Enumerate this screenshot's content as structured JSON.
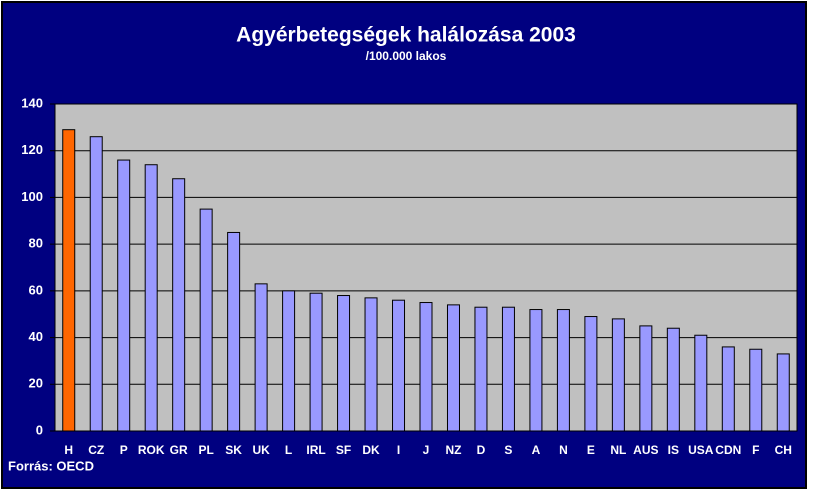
{
  "chart_data": {
    "type": "bar",
    "title": "Agyérbetegségek halálozása 2003",
    "subtitle": "/100.000 lakos",
    "source": "Forrás: OECD",
    "categories": [
      "H",
      "CZ",
      "P",
      "ROK",
      "GR",
      "PL",
      "SK",
      "UK",
      "L",
      "IRL",
      "SF",
      "DK",
      "I",
      "J",
      "NZ",
      "D",
      "S",
      "A",
      "N",
      "E",
      "NL",
      "AUS",
      "IS",
      "USA",
      "CDN",
      "F",
      "CH"
    ],
    "values": [
      129,
      126,
      116,
      114,
      108,
      95,
      85,
      63,
      60,
      59,
      58,
      57,
      56,
      55,
      54,
      53,
      53,
      52,
      52,
      49,
      48,
      45,
      44,
      41,
      36,
      35,
      33
    ],
    "colors": [
      "#ff6600",
      "#9999ff",
      "#9999ff",
      "#9999ff",
      "#9999ff",
      "#9999ff",
      "#9999ff",
      "#9999ff",
      "#9999ff",
      "#9999ff",
      "#9999ff",
      "#9999ff",
      "#9999ff",
      "#9999ff",
      "#9999ff",
      "#9999ff",
      "#9999ff",
      "#9999ff",
      "#9999ff",
      "#9999ff",
      "#9999ff",
      "#9999ff",
      "#9999ff",
      "#9999ff",
      "#9999ff",
      "#9999ff",
      "#9999ff"
    ],
    "ylim": [
      0,
      140
    ],
    "yticks": [
      0,
      20,
      40,
      60,
      80,
      100,
      120,
      140
    ],
    "grid": true
  }
}
